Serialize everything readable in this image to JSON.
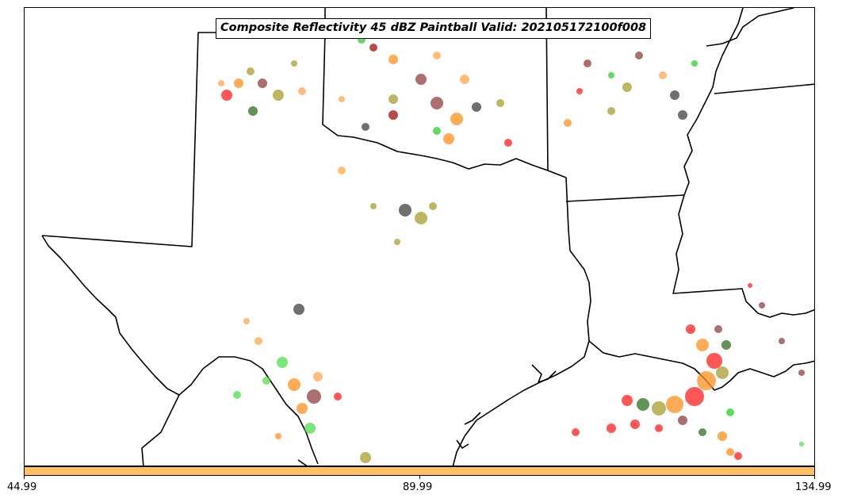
{
  "title": "Composite Reflectivity 45 dBZ Paintball Valid: 202105172100f008",
  "colorbar": {
    "color": "#ffc060",
    "ticks": [
      "44.99",
      "89.99",
      "134.99"
    ]
  },
  "colors": {
    "red": "#ff2020",
    "dark_red": "#a01010",
    "brown": "#904040",
    "orange": "#ff9020",
    "light_orange": "#ffa850",
    "olive": "#a8a030",
    "dark_gray": "#404040",
    "green": "#30d030",
    "dark_green": "#307020",
    "light_green": "#50e050",
    "boundary": "#000000"
  }
}
